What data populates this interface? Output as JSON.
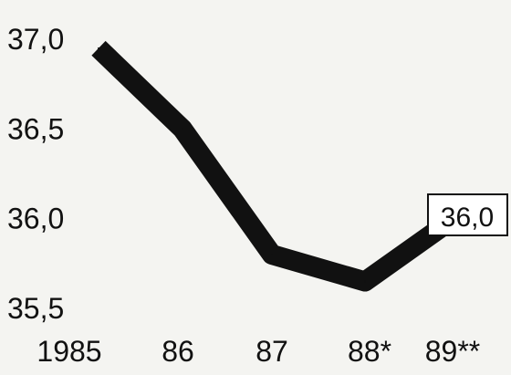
{
  "chart_data": {
    "type": "line",
    "categories": [
      "1985",
      "86",
      "87",
      "88*",
      "89**"
    ],
    "series": [
      {
        "values": [
          36.95,
          36.5,
          35.8,
          35.65,
          36.0
        ]
      }
    ],
    "y_ticks": [
      "37,0",
      "36,5",
      "36,0",
      "35,5"
    ],
    "y_tick_values": [
      37.0,
      36.5,
      36.0,
      35.5
    ],
    "ylim": [
      35.5,
      37.0
    ],
    "annotations": [
      {
        "category_index": 4,
        "text": "36,0"
      }
    ],
    "grid": false,
    "colors": {
      "line": "#111111",
      "background": "#f4f4f1"
    }
  }
}
